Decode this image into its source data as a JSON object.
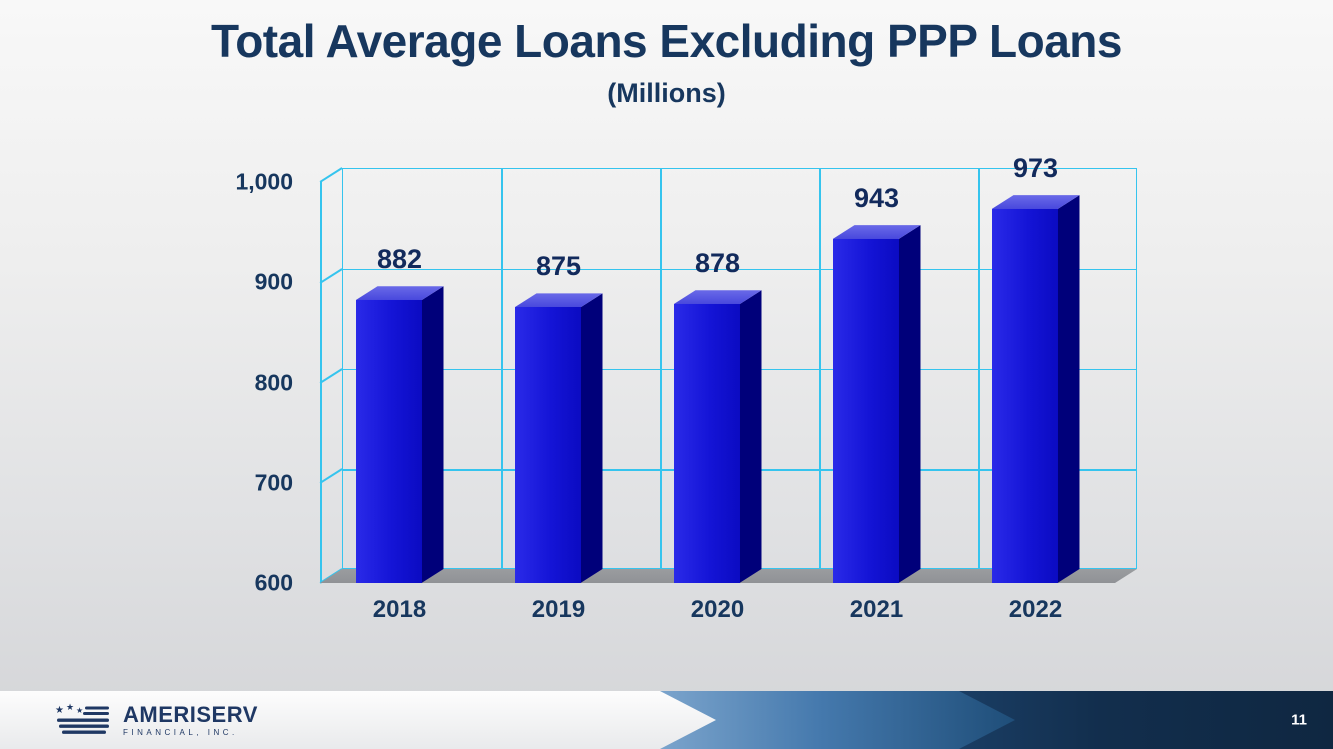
{
  "slide": {
    "title": "Total Average Loans Excluding PPP Loans",
    "subtitle": "(Millions)"
  },
  "footer": {
    "logo_name": "AMERISERV",
    "logo_sub": "FINANCIAL, INC.",
    "page_number": "11"
  },
  "chart_data": {
    "type": "bar",
    "title": "Total Average Loans Excluding PPP Loans",
    "subtitle": "(Millions)",
    "categories": [
      "2018",
      "2019",
      "2020",
      "2021",
      "2022"
    ],
    "values": [
      882,
      875,
      878,
      943,
      973
    ],
    "xlabel": "",
    "ylabel": "",
    "ylim": [
      600,
      1000
    ],
    "ytick_step": 100,
    "ytick_labels": [
      "1,000",
      "900",
      "800",
      "700",
      "600"
    ],
    "grid": true,
    "legend": "none",
    "style": "3d-column",
    "colors": {
      "bar_front": "#1414D6",
      "bar_top": "#4848DD",
      "bar_side": "#00007A",
      "gridline": "#35C4EE",
      "label": "#17375E",
      "floor": "#909296"
    }
  }
}
